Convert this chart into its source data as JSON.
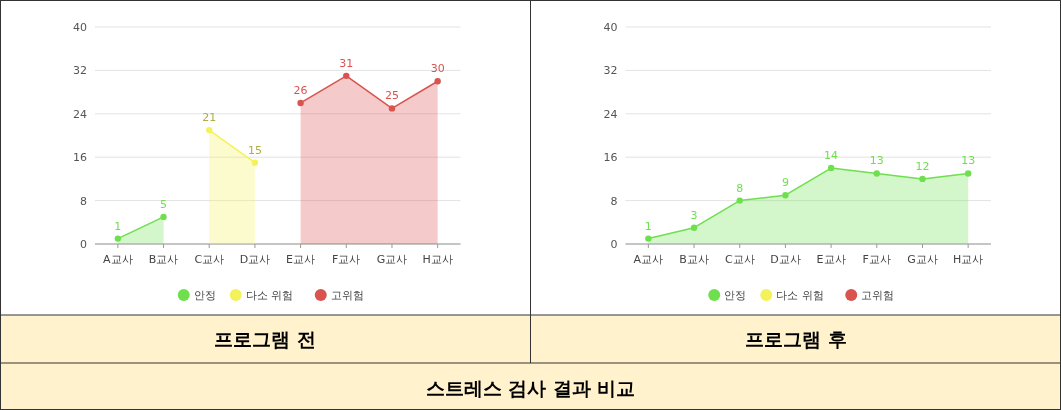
{
  "chart_data": [
    {
      "type": "area",
      "title": "프로그램 전",
      "categories": [
        "A교사",
        "B교사",
        "C교사",
        "D교사",
        "E교사",
        "F교사",
        "G교사",
        "H교사"
      ],
      "series": [
        {
          "name": "안정",
          "color": "#6ee04e",
          "values": [
            1,
            5,
            null,
            null,
            null,
            null,
            null,
            null
          ]
        },
        {
          "name": "다소 위험",
          "color": "#f4f25a",
          "values": [
            null,
            null,
            21,
            15,
            null,
            null,
            null,
            null
          ]
        },
        {
          "name": "고위험",
          "color": "#d9534f",
          "values": [
            null,
            null,
            null,
            null,
            26,
            31,
            25,
            30
          ]
        }
      ],
      "ylim": [
        0,
        40
      ],
      "yticks": [
        0,
        8,
        16,
        24,
        32,
        40
      ],
      "grid": "y",
      "legend": "bottom",
      "marker": "circle",
      "data_labels": true,
      "annotations": [
        "스트레스 검사 결과 비교"
      ]
    },
    {
      "type": "area",
      "title": "프로그램 후",
      "categories": [
        "A교사",
        "B교사",
        "C교사",
        "D교사",
        "E교사",
        "F교사",
        "G교사",
        "H교사"
      ],
      "series": [
        {
          "name": "안정",
          "color": "#6ee04e",
          "values": [
            1,
            3,
            8,
            9,
            14,
            13,
            12,
            13
          ]
        },
        {
          "name": "다소 위험",
          "color": "#f4f25a",
          "values": [
            null,
            null,
            null,
            null,
            null,
            null,
            null,
            null
          ]
        },
        {
          "name": "고위험",
          "color": "#d9534f",
          "values": [
            null,
            null,
            null,
            null,
            null,
            null,
            null,
            null
          ]
        }
      ],
      "ylim": [
        0,
        40
      ],
      "yticks": [
        0,
        8,
        16,
        24,
        32,
        40
      ],
      "grid": "y",
      "legend": "bottom",
      "marker": "circle",
      "data_labels": true
    }
  ]
}
